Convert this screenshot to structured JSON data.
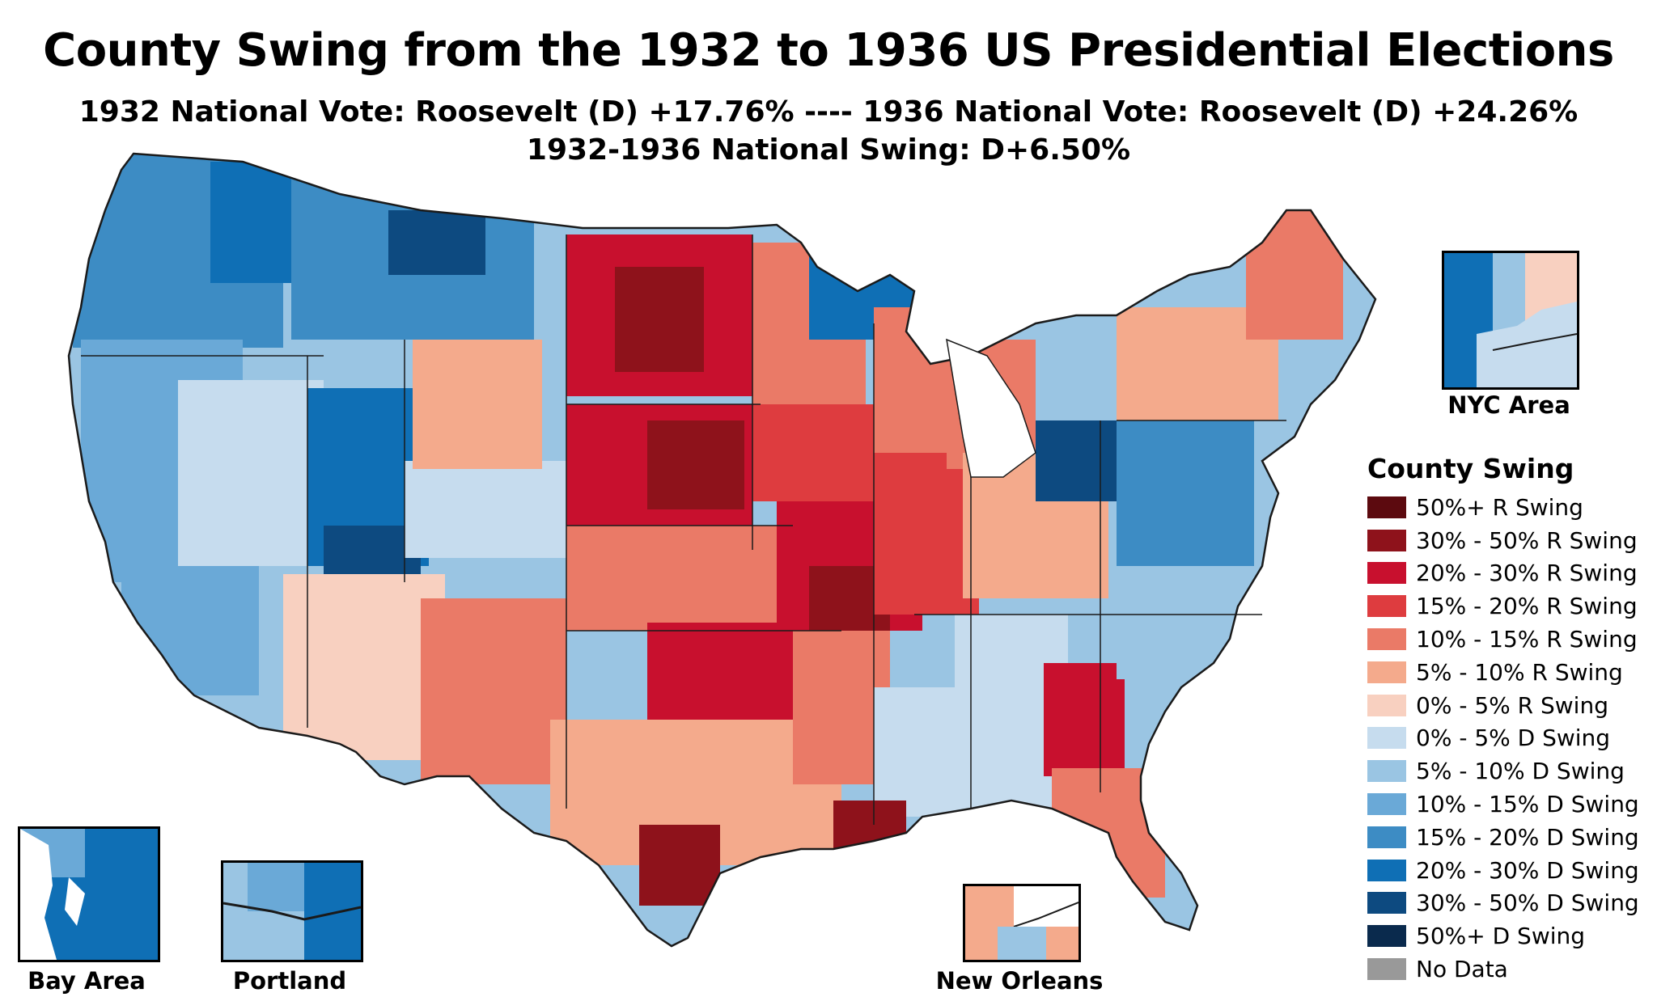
{
  "title": "County Swing from the 1932 to 1936 US Presidential Elections",
  "subtitle_line1": "1932 National Vote: Roosevelt (D) +17.76% ---- 1936 National Vote: Roosevelt (D) +24.26%",
  "subtitle_line2": "1932-1936 National Swing: D+6.50%",
  "national_results": {
    "1932_margin": "Roosevelt (D) +17.76%",
    "1936_margin": "Roosevelt (D) +24.26%",
    "national_swing": "D+6.50%"
  },
  "legend": {
    "title": "County Swing",
    "items": [
      {
        "label": "50%+ R Swing",
        "color": "#5c0a0f"
      },
      {
        "label": "30% - 50% R Swing",
        "color": "#8e121b"
      },
      {
        "label": "20% - 30% R Swing",
        "color": "#c8102e"
      },
      {
        "label": "15% - 20% R Swing",
        "color": "#de3c3f"
      },
      {
        "label": "10% - 15% R Swing",
        "color": "#ea7a67"
      },
      {
        "label": "5% - 10% R Swing",
        "color": "#f4aa8c"
      },
      {
        "label": "0% - 5% R Swing",
        "color": "#f8d0c0"
      },
      {
        "label": "0% - 5% D Swing",
        "color": "#c6dcee"
      },
      {
        "label": "5% - 10% D Swing",
        "color": "#9ac5e3"
      },
      {
        "label": "10% - 15% D Swing",
        "color": "#6aa9d7"
      },
      {
        "label": "15% - 20% D Swing",
        "color": "#3d8cc4"
      },
      {
        "label": "20% - 30% D Swing",
        "color": "#0f6fb5"
      },
      {
        "label": "30% - 50% D Swing",
        "color": "#0d4a80"
      },
      {
        "label": "50%+ D Swing",
        "color": "#0a2a4d"
      },
      {
        "label": "No Data",
        "color": "#999999"
      }
    ]
  },
  "insets": {
    "nyc": "NYC Area",
    "bay_area": "Bay Area",
    "portland": "Portland",
    "new_orleans": "New Orleans"
  },
  "colors": {
    "border": "#1a1a1a",
    "background": "#ffffff"
  }
}
